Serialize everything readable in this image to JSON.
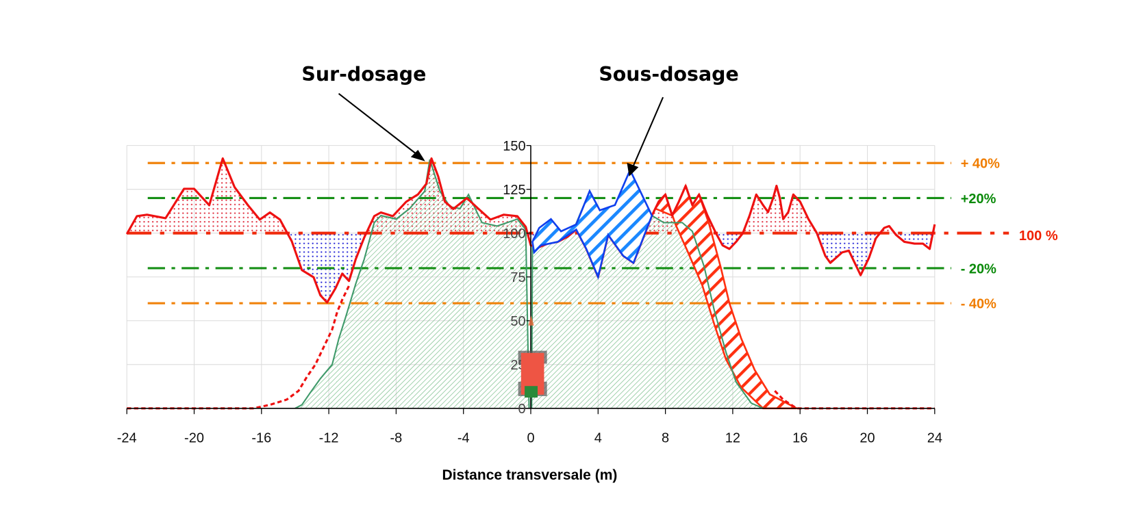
{
  "chart_data": {
    "type": "area",
    "title": "",
    "xlabel": "Distance transversale (m)",
    "ylabel": "",
    "xlim": [
      -24,
      24
    ],
    "ylim": [
      0,
      150
    ],
    "x_ticks": [
      -24,
      -20,
      -16,
      -12,
      -8,
      -4,
      0,
      4,
      8,
      12,
      16,
      20,
      24
    ],
    "y_ticks": [
      0,
      25,
      50,
      75,
      100,
      125,
      150
    ],
    "grid": true,
    "colors": {
      "total": "#ee1111",
      "pass": "#3f9a6a",
      "over": "#e03040",
      "under": "#2a2ad8",
      "under_hatch": "#1a88ff",
      "edge_hatch": "#ff3010",
      "orange": "#f07d00",
      "green": "#0a8a0a",
      "ref100": "#f02000"
    },
    "reference_lines": [
      {
        "value": 140,
        "label": "+ 40%",
        "color": "#f07d00"
      },
      {
        "value": 120,
        "label": "+20%",
        "color": "#0a8a0a"
      },
      {
        "value": 100,
        "label": "100 %",
        "color": "#f02000"
      },
      {
        "value": 80,
        "label": "- 20%",
        "color": "#0a8a0a"
      },
      {
        "value": 60,
        "label": "- 40%",
        "color": "#f07d00"
      }
    ],
    "annotations": [
      {
        "text": "Sur-dosage",
        "target": [
          -6.0,
          141
        ]
      },
      {
        "text": "Sous-dosage",
        "target": [
          5.8,
          134
        ]
      }
    ],
    "series": {
      "total": [
        [
          -24,
          99.5
        ],
        [
          -23.4,
          109.7
        ],
        [
          -22.8,
          110.5
        ],
        [
          -21.7,
          108.5
        ],
        [
          -20.6,
          125.3
        ],
        [
          -20.0,
          125.3
        ],
        [
          -19.1,
          115.9
        ],
        [
          -18.3,
          142.6
        ],
        [
          -17.6,
          126.2
        ],
        [
          -16.8,
          115.9
        ],
        [
          -16.1,
          107.7
        ],
        [
          -15.5,
          111.8
        ],
        [
          -14.9,
          107.7
        ],
        [
          -14.2,
          95.3
        ],
        [
          -13.6,
          78.9
        ],
        [
          -12.9,
          74.8
        ],
        [
          -12.5,
          64.5
        ],
        [
          -12.1,
          60.4
        ],
        [
          -11.6,
          68.6
        ],
        [
          -11.2,
          76.9
        ],
        [
          -10.8,
          72.7
        ],
        [
          -10.4,
          85.1
        ],
        [
          -9.9,
          97.4
        ],
        [
          -9.3,
          109.7
        ],
        [
          -8.9,
          111.8
        ],
        [
          -8.2,
          109.7
        ],
        [
          -7.4,
          117.9
        ],
        [
          -6.7,
          122.1
        ],
        [
          -6.2,
          128.2
        ],
        [
          -5.9,
          142.6
        ],
        [
          -5.5,
          132.3
        ],
        [
          -5.1,
          117.9
        ],
        [
          -4.6,
          113.8
        ],
        [
          -3.8,
          120.0
        ],
        [
          -3.1,
          113.8
        ],
        [
          -2.4,
          107.7
        ],
        [
          -1.6,
          110.5
        ],
        [
          -0.8,
          109.7
        ],
        [
          -0.3,
          103.6
        ],
        [
          0.0,
          93
        ],
        [
          0.5,
          92
        ],
        [
          1.0,
          94
        ],
        [
          1.6,
          95
        ],
        [
          2.2,
          98
        ],
        [
          2.7,
          102
        ],
        [
          3.3,
          91
        ],
        [
          4.0,
          75
        ],
        [
          4.6,
          99
        ],
        [
          5.5,
          87
        ],
        [
          6.1,
          83
        ],
        [
          7.2,
          110
        ],
        [
          7.6,
          118
        ],
        [
          8.0,
          122
        ],
        [
          8.4,
          110
        ],
        [
          8.8,
          118
        ],
        [
          9.2,
          127
        ],
        [
          9.6,
          116
        ],
        [
          10.0,
          122
        ],
        [
          10.5,
          110
        ],
        [
          11.0,
          100
        ],
        [
          11.4,
          93
        ],
        [
          11.8,
          91
        ],
        [
          12.2,
          95
        ],
        [
          12.6,
          100
        ],
        [
          13.0,
          110
        ],
        [
          13.4,
          122
        ],
        [
          13.8,
          116
        ],
        [
          14.1,
          112
        ],
        [
          14.4,
          120
        ],
        [
          14.6,
          127
        ],
        [
          14.8,
          120
        ],
        [
          15.0,
          108
        ],
        [
          15.3,
          112
        ],
        [
          15.6,
          122
        ],
        [
          16.0,
          118
        ],
        [
          16.5,
          108
        ],
        [
          17.0,
          100
        ],
        [
          17.5,
          87
        ],
        [
          17.8,
          83
        ],
        [
          18.5,
          89
        ],
        [
          18.9,
          90
        ],
        [
          19.3,
          82
        ],
        [
          19.6,
          76
        ],
        [
          20.1,
          86
        ],
        [
          20.5,
          97
        ],
        [
          21.0,
          103
        ],
        [
          21.3,
          104
        ],
        [
          21.7,
          99
        ],
        [
          22.2,
          95
        ],
        [
          22.8,
          94
        ],
        [
          23.3,
          94
        ],
        [
          23.7,
          91
        ],
        [
          24.0,
          105
        ]
      ],
      "pass_left": [
        [
          -14.0,
          0
        ],
        [
          -13.6,
          2
        ],
        [
          -13.1,
          9
        ],
        [
          -12.5,
          17
        ],
        [
          -11.8,
          25
        ],
        [
          -11.4,
          40
        ],
        [
          -11.0,
          52
        ],
        [
          -10.4,
          71
        ],
        [
          -9.9,
          85
        ],
        [
          -9.3,
          106
        ],
        [
          -8.9,
          110
        ],
        [
          -8.0,
          108
        ],
        [
          -7.2,
          114
        ],
        [
          -6.3,
          124
        ],
        [
          -6.0,
          142
        ],
        [
          -5.4,
          124
        ],
        [
          -4.8,
          115
        ],
        [
          -4.2,
          114
        ],
        [
          -3.7,
          122
        ],
        [
          -3.3,
          114
        ],
        [
          -2.9,
          106
        ],
        [
          -2.0,
          104
        ],
        [
          -1.4,
          106
        ],
        [
          -0.8,
          108
        ],
        [
          -0.3,
          102
        ],
        [
          -0.1,
          0
        ]
      ],
      "pass_right": [
        [
          0.05,
          0
        ],
        [
          0.1,
          93
        ],
        [
          0.9,
          95
        ],
        [
          1.6,
          99
        ],
        [
          2.5,
          101
        ],
        [
          3.5,
          124
        ],
        [
          4.1,
          113
        ],
        [
          5.0,
          116
        ],
        [
          5.7,
          130
        ],
        [
          5.9,
          136
        ],
        [
          6.3,
          124
        ],
        [
          7.2,
          110
        ],
        [
          7.9,
          106
        ],
        [
          9.0,
          106
        ],
        [
          9.6,
          101
        ],
        [
          10.3,
          81
        ],
        [
          10.9,
          56
        ],
        [
          11.6,
          32
        ],
        [
          12.2,
          15
        ],
        [
          13.1,
          3
        ],
        [
          13.8,
          0
        ]
      ],
      "tail_left_dotted": [
        [
          -24,
          0
        ],
        [
          -16.5,
          0
        ],
        [
          -15.5,
          2
        ],
        [
          -14.5,
          5
        ],
        [
          -13.8,
          10
        ],
        [
          -13.3,
          18
        ],
        [
          -12.8,
          25
        ],
        [
          -12.3,
          35
        ],
        [
          -11.8,
          45
        ],
        [
          -11.5,
          55
        ],
        [
          -11.2,
          62
        ],
        [
          -10.8,
          70
        ]
      ],
      "tail_right_dotted": [
        [
          14.5,
          10
        ],
        [
          15.0,
          5
        ],
        [
          15.8,
          0
        ],
        [
          24,
          0
        ]
      ],
      "under_region": [
        [
          0.1,
          95
        ],
        [
          0.5,
          103
        ],
        [
          1.2,
          108
        ],
        [
          1.8,
          101
        ],
        [
          2.7,
          105
        ],
        [
          3.5,
          124
        ],
        [
          4.1,
          113
        ],
        [
          5.0,
          116
        ],
        [
          5.9,
          136
        ],
        [
          7.2,
          110
        ],
        [
          6.1,
          83
        ],
        [
          5.5,
          87
        ],
        [
          4.6,
          99
        ],
        [
          4.0,
          75
        ],
        [
          3.3,
          91
        ],
        [
          2.7,
          102
        ],
        [
          1.6,
          95
        ],
        [
          0.6,
          93
        ],
        [
          0.2,
          89
        ]
      ],
      "edge_region": [
        [
          7.4,
          114
        ],
        [
          8.0,
          122
        ],
        [
          8.6,
          105
        ],
        [
          9.3,
          90
        ],
        [
          10.2,
          70
        ],
        [
          10.9,
          48
        ],
        [
          11.6,
          28
        ],
        [
          12.5,
          12
        ],
        [
          13.8,
          0
        ],
        [
          15.8,
          0
        ],
        [
          14.2,
          8
        ],
        [
          13.3,
          22
        ],
        [
          12.5,
          40
        ],
        [
          11.8,
          60
        ],
        [
          11.3,
          80
        ],
        [
          10.6,
          105
        ],
        [
          10.0,
          122
        ],
        [
          9.6,
          116
        ],
        [
          9.2,
          127
        ],
        [
          8.8,
          118
        ],
        [
          8.4,
          110
        ]
      ]
    }
  }
}
